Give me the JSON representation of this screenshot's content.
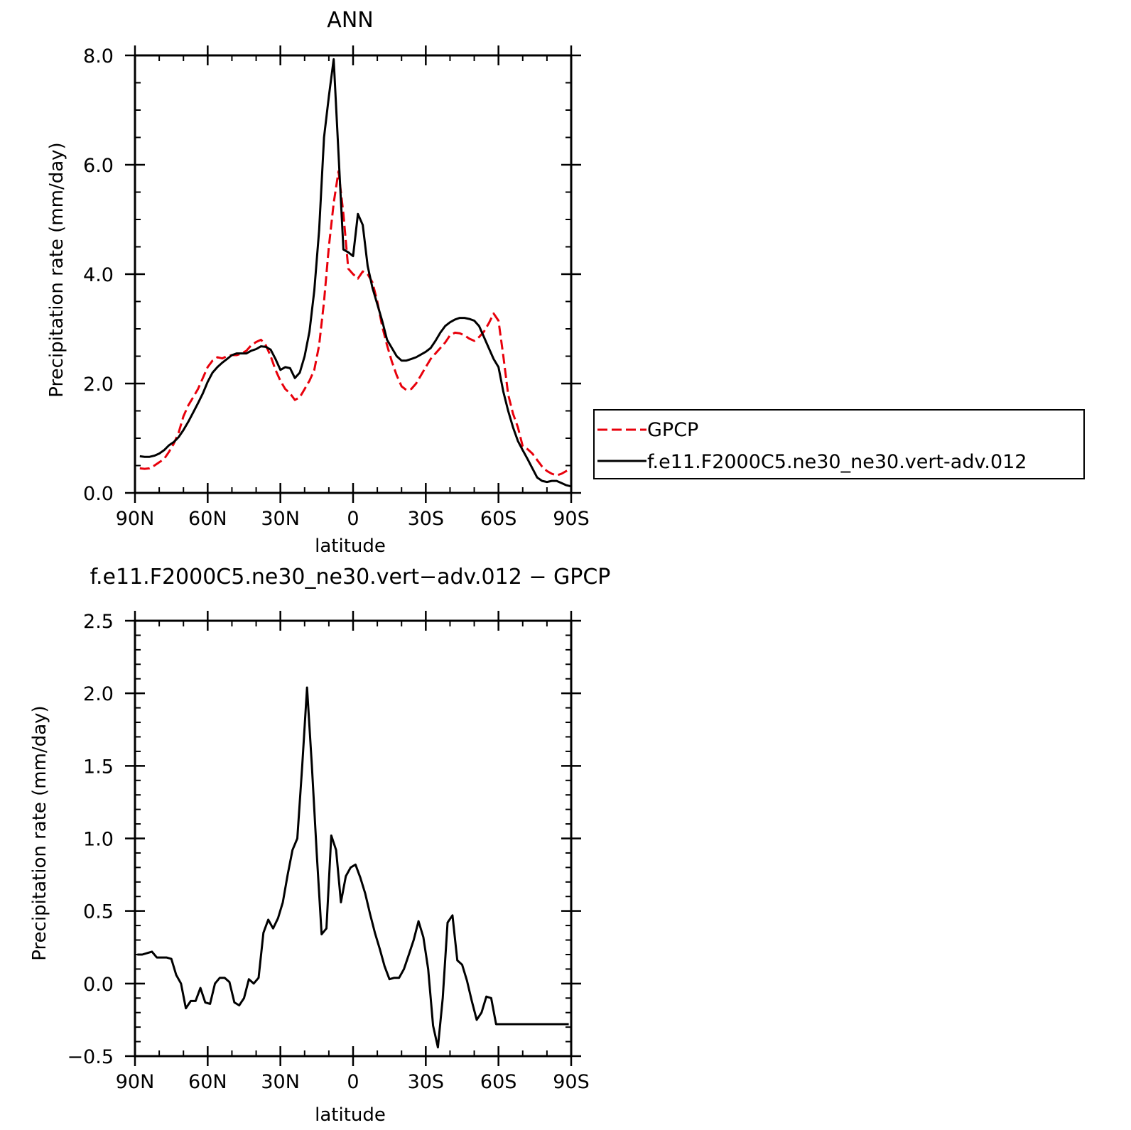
{
  "chart_data": [
    {
      "type": "line",
      "title": "ANN",
      "xlabel": "latitude",
      "ylabel": "Precipitation rate (mm/day)",
      "xlim": [
        -90,
        90
      ],
      "ylim": [
        0,
        8
      ],
      "xticks": [
        -90,
        -60,
        -30,
        0,
        30,
        60,
        90
      ],
      "xtick_labels": [
        "90N",
        "60N",
        "30N",
        "0",
        "30S",
        "60S",
        "90S"
      ],
      "yticks": [
        0,
        2,
        4,
        6,
        8
      ],
      "ytick_labels": [
        "0.0",
        "2.0",
        "4.0",
        "6.0",
        "8.0"
      ],
      "yminor_step": 0.5,
      "xminor_step": 10,
      "legend": {
        "placement": "right",
        "entries": [
          "GPCP",
          "f.e11.F2000C5.ne30_ne30.vert-adv.012"
        ]
      },
      "series": [
        {
          "name": "GPCP",
          "color": "#e8000b",
          "dash": "dashed",
          "x": [
            -88,
            -86,
            -84,
            -82,
            -80,
            -78,
            -76,
            -74,
            -72,
            -70,
            -68,
            -66,
            -64,
            -62,
            -60,
            -58,
            -56,
            -54,
            -52,
            -50,
            -48,
            -46,
            -44,
            -42,
            -40,
            -38,
            -36,
            -34,
            -32,
            -30,
            -28,
            -26,
            -24,
            -22,
            -20,
            -18,
            -16,
            -14,
            -12,
            -10,
            -8,
            -6,
            -4,
            -2,
            0,
            2,
            4,
            6,
            8,
            10,
            12,
            14,
            16,
            18,
            20,
            22,
            24,
            26,
            28,
            30,
            32,
            34,
            36,
            38,
            40,
            42,
            44,
            46,
            48,
            50,
            52,
            54,
            56,
            58,
            60,
            62,
            64,
            66,
            68,
            70,
            72,
            74,
            76,
            78,
            80,
            82,
            84,
            86,
            88,
            90
          ],
          "y": [
            0.45,
            0.44,
            0.45,
            0.5,
            0.56,
            0.62,
            0.75,
            0.9,
            1.1,
            1.4,
            1.6,
            1.75,
            1.9,
            2.1,
            2.3,
            2.42,
            2.48,
            2.46,
            2.5,
            2.52,
            2.52,
            2.55,
            2.6,
            2.7,
            2.76,
            2.8,
            2.7,
            2.5,
            2.25,
            2.05,
            1.9,
            1.82,
            1.7,
            1.75,
            1.9,
            2.05,
            2.25,
            2.7,
            3.5,
            4.5,
            5.3,
            5.88,
            5.1,
            4.1,
            4.0,
            3.92,
            4.05,
            4.0,
            3.85,
            3.5,
            3.05,
            2.7,
            2.4,
            2.15,
            1.95,
            1.88,
            1.9,
            2.0,
            2.15,
            2.3,
            2.45,
            2.55,
            2.65,
            2.75,
            2.88,
            2.93,
            2.92,
            2.88,
            2.82,
            2.78,
            2.85,
            2.95,
            3.1,
            3.28,
            3.15,
            2.5,
            1.8,
            1.45,
            1.2,
            0.85,
            0.8,
            0.72,
            0.6,
            0.48,
            0.4,
            0.35,
            0.32,
            0.35,
            0.4,
            0.45
          ]
        },
        {
          "name": "f.e11.F2000C5.ne30_ne30.vert-adv.012",
          "color": "#000000",
          "dash": "solid",
          "x": [
            -88,
            -86,
            -84,
            -82,
            -80,
            -78,
            -76,
            -74,
            -72,
            -70,
            -68,
            -66,
            -64,
            -62,
            -60,
            -58,
            -56,
            -54,
            -52,
            -50,
            -48,
            -46,
            -44,
            -42,
            -40,
            -38,
            -36,
            -34,
            -32,
            -30,
            -28,
            -26,
            -24,
            -22,
            -20,
            -18,
            -16,
            -14,
            -12,
            -10,
            -8,
            -6,
            -4,
            -2,
            0,
            2,
            4,
            6,
            8,
            10,
            12,
            14,
            16,
            18,
            20,
            22,
            24,
            26,
            28,
            30,
            32,
            34,
            36,
            38,
            40,
            42,
            44,
            46,
            48,
            50,
            52,
            54,
            56,
            58,
            60,
            62,
            64,
            66,
            68,
            70,
            72,
            74,
            76,
            78,
            80,
            82,
            84,
            86,
            88,
            90
          ],
          "y": [
            0.67,
            0.66,
            0.66,
            0.68,
            0.72,
            0.78,
            0.87,
            0.93,
            1.02,
            1.15,
            1.3,
            1.47,
            1.64,
            1.82,
            2.03,
            2.2,
            2.3,
            2.38,
            2.45,
            2.52,
            2.55,
            2.55,
            2.55,
            2.6,
            2.63,
            2.68,
            2.67,
            2.62,
            2.45,
            2.25,
            2.3,
            2.28,
            2.1,
            2.2,
            2.5,
            2.95,
            3.7,
            4.8,
            6.5,
            7.25,
            7.93,
            6.2,
            4.45,
            4.4,
            4.33,
            5.1,
            4.9,
            4.15,
            3.75,
            3.45,
            3.15,
            2.8,
            2.65,
            2.5,
            2.42,
            2.42,
            2.45,
            2.48,
            2.53,
            2.58,
            2.65,
            2.78,
            2.93,
            3.05,
            3.12,
            3.17,
            3.2,
            3.2,
            3.18,
            3.15,
            3.05,
            2.85,
            2.65,
            2.45,
            2.3,
            1.85,
            1.5,
            1.2,
            0.95,
            0.78,
            0.62,
            0.45,
            0.28,
            0.22,
            0.2,
            0.22,
            0.22,
            0.18,
            0.14,
            0.12
          ]
        }
      ]
    },
    {
      "type": "line",
      "title": "f.e11.F2000C5.ne30_ne30.vert−adv.012 − GPCP",
      "xlabel": "latitude",
      "ylabel": "Precipitation rate (mm/day)",
      "xlim": [
        -90,
        90
      ],
      "ylim": [
        -0.5,
        2.5
      ],
      "xticks": [
        -90,
        -60,
        -30,
        0,
        30,
        60,
        90
      ],
      "xtick_labels": [
        "90N",
        "60N",
        "30N",
        "0",
        "30S",
        "60S",
        "90S"
      ],
      "yticks": [
        -0.5,
        0.0,
        0.5,
        1.0,
        1.5,
        2.0,
        2.5
      ],
      "ytick_labels": [
        "−0.5",
        "0.0",
        "0.5",
        "1.0",
        "1.5",
        "2.0",
        "2.5"
      ],
      "yminor_step": 0.1,
      "xminor_step": 10,
      "series": [
        {
          "name": "f.e11.F2000C5.ne30_ne30.vert-adv.012 - GPCP",
          "color": "#000000",
          "dash": "solid",
          "x": [
            -89,
            -87,
            -85,
            -83,
            -81,
            -79,
            -77,
            -75,
            -73,
            -71,
            -69,
            -67,
            -65,
            -63,
            -61,
            -59,
            -57,
            -55,
            -53,
            -51,
            -49,
            -47,
            -45,
            -43,
            -41,
            -39,
            -37,
            -35,
            -33,
            -31,
            -29,
            -27,
            -25,
            -23,
            -21,
            -19,
            -17,
            -15,
            -13,
            -11,
            -9,
            -7,
            -5,
            -3,
            -1,
            1,
            3,
            5,
            7,
            9,
            11,
            13,
            15,
            17,
            19,
            21,
            23,
            25,
            27,
            29,
            31,
            33,
            35,
            37,
            39,
            41,
            43,
            45,
            47,
            49,
            51,
            53,
            55,
            57,
            59,
            61,
            63,
            65,
            67,
            69,
            71,
            73,
            75,
            77,
            79,
            81,
            83,
            85,
            87,
            89
          ],
          "y": [
            0.2,
            0.2,
            0.21,
            0.22,
            0.18,
            0.18,
            0.18,
            0.17,
            0.06,
            0.0,
            -0.17,
            -0.12,
            -0.12,
            -0.03,
            -0.13,
            -0.14,
            0.0,
            0.04,
            0.04,
            0.01,
            -0.13,
            -0.15,
            -0.1,
            0.03,
            0.0,
            0.04,
            0.35,
            0.44,
            0.38,
            0.45,
            0.56,
            0.75,
            0.92,
            1.0,
            1.5,
            2.04,
            1.5,
            0.9,
            0.34,
            0.38,
            1.02,
            0.92,
            0.56,
            0.74,
            0.8,
            0.82,
            0.73,
            0.62,
            0.48,
            0.35,
            0.24,
            0.12,
            0.03,
            0.04,
            0.04,
            0.1,
            0.2,
            0.3,
            0.43,
            0.32,
            0.1,
            -0.29,
            -0.44,
            -0.1,
            0.42,
            0.47,
            0.16,
            0.13,
            0.02,
            -0.12,
            -0.25,
            -0.2,
            -0.09,
            -0.1,
            -0.28,
            -0.28,
            -0.28,
            -0.28,
            -0.28,
            -0.28,
            -0.28,
            -0.28,
            -0.28,
            -0.28,
            -0.28,
            -0.28,
            -0.28,
            -0.28,
            -0.28,
            -0.28
          ]
        }
      ]
    }
  ]
}
